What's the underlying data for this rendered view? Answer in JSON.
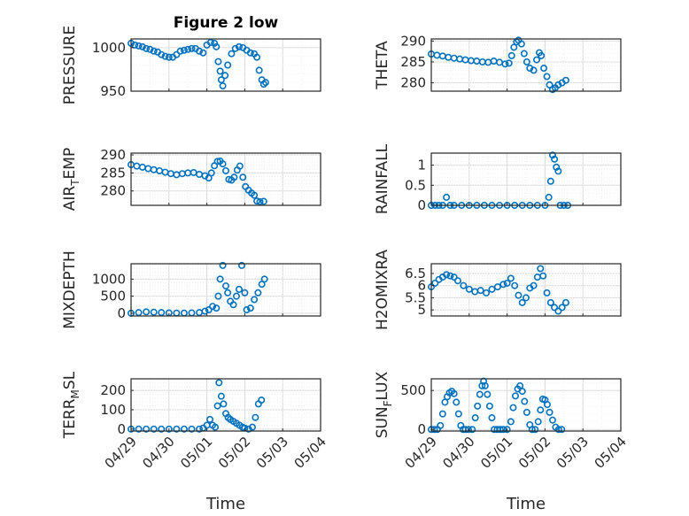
{
  "figure": {
    "title": "Figure 2 low",
    "xlabel": "Time"
  },
  "colors": {
    "marker": "#0072bd",
    "axis": "#262626",
    "grid": "#d9d9d9"
  },
  "chart_data": [
    {
      "type": "scatter",
      "ylabel": "PRESSURE",
      "title": "Figure 2 low",
      "xlim": [
        "04/29",
        "05/04"
      ],
      "ylim": [
        950,
        1010
      ],
      "yticks": [
        950,
        1000
      ],
      "grid": true,
      "x_tick_labels": [
        "04/29",
        "04/30",
        "05/01",
        "05/02",
        "05/03",
        "05/04"
      ],
      "points": [
        [
          0,
          1005
        ],
        [
          0.1,
          1003
        ],
        [
          0.2,
          1002
        ],
        [
          0.3,
          1001
        ],
        [
          0.4,
          999
        ],
        [
          0.5,
          998
        ],
        [
          0.6,
          996
        ],
        [
          0.7,
          995
        ],
        [
          0.8,
          992
        ],
        [
          0.9,
          990
        ],
        [
          1.0,
          989
        ],
        [
          1.1,
          989
        ],
        [
          1.2,
          992
        ],
        [
          1.3,
          996
        ],
        [
          1.4,
          997
        ],
        [
          1.5,
          998
        ],
        [
          1.6,
          999
        ],
        [
          1.7,
          999
        ],
        [
          1.8,
          996
        ],
        [
          1.9,
          994
        ],
        [
          2.0,
          1003
        ],
        [
          2.1,
          1006
        ],
        [
          2.2,
          1005
        ],
        [
          2.25,
          1001
        ],
        [
          2.3,
          984
        ],
        [
          2.35,
          973
        ],
        [
          2.38,
          963
        ],
        [
          2.42,
          956
        ],
        [
          2.48,
          968
        ],
        [
          2.55,
          980
        ],
        [
          2.65,
          993
        ],
        [
          2.75,
          999
        ],
        [
          2.85,
          1001
        ],
        [
          2.95,
          1000
        ],
        [
          3.05,
          997
        ],
        [
          3.15,
          994
        ],
        [
          3.25,
          993
        ],
        [
          3.32,
          989
        ],
        [
          3.38,
          974
        ],
        [
          3.45,
          963
        ],
        [
          3.5,
          958
        ],
        [
          3.55,
          960
        ]
      ]
    },
    {
      "type": "scatter",
      "ylabel": "THETA",
      "xlim": [
        "04/29",
        "05/04"
      ],
      "ylim": [
        278,
        290.5
      ],
      "yticks": [
        280,
        285,
        290
      ],
      "grid": true,
      "x_tick_labels": [
        "04/29",
        "04/30",
        "05/01",
        "05/02",
        "05/03",
        "05/04"
      ],
      "points": [
        [
          0,
          286.9
        ],
        [
          0.15,
          286.6
        ],
        [
          0.3,
          286.4
        ],
        [
          0.45,
          286.1
        ],
        [
          0.6,
          285.9
        ],
        [
          0.75,
          285.7
        ],
        [
          0.9,
          285.5
        ],
        [
          1.05,
          285.3
        ],
        [
          1.2,
          285.2
        ],
        [
          1.35,
          285.0
        ],
        [
          1.5,
          284.9
        ],
        [
          1.65,
          285.2
        ],
        [
          1.8,
          284.9
        ],
        [
          1.95,
          284.5
        ],
        [
          2.05,
          284.7
        ],
        [
          2.12,
          286.5
        ],
        [
          2.18,
          288.5
        ],
        [
          2.25,
          289.8
        ],
        [
          2.3,
          290.2
        ],
        [
          2.38,
          289.3
        ],
        [
          2.45,
          287.0
        ],
        [
          2.52,
          285.0
        ],
        [
          2.6,
          283.5
        ],
        [
          2.7,
          283.0
        ],
        [
          2.78,
          285.5
        ],
        [
          2.85,
          287.2
        ],
        [
          2.9,
          286.5
        ],
        [
          2.97,
          283.5
        ],
        [
          3.05,
          281.5
        ],
        [
          3.12,
          279.5
        ],
        [
          3.2,
          278.4
        ],
        [
          3.27,
          278.8
        ],
        [
          3.35,
          279.5
        ],
        [
          3.45,
          280.0
        ],
        [
          3.55,
          280.6
        ]
      ]
    },
    {
      "type": "scatter",
      "ylabel": "AIR_TEMP",
      "xlim": [
        "04/29",
        "05/04"
      ],
      "ylim": [
        276,
        290.5
      ],
      "yticks": [
        280,
        285,
        290
      ],
      "grid": true,
      "x_tick_labels": [
        "04/29",
        "04/30",
        "05/01",
        "05/02",
        "05/03",
        "05/04"
      ],
      "points": [
        [
          0,
          287.3
        ],
        [
          0.15,
          286.9
        ],
        [
          0.3,
          286.6
        ],
        [
          0.45,
          286.2
        ],
        [
          0.6,
          285.9
        ],
        [
          0.75,
          285.6
        ],
        [
          0.9,
          285.2
        ],
        [
          1.05,
          284.8
        ],
        [
          1.2,
          284.5
        ],
        [
          1.35,
          284.8
        ],
        [
          1.5,
          285.0
        ],
        [
          1.65,
          285.1
        ],
        [
          1.8,
          284.6
        ],
        [
          1.95,
          284.2
        ],
        [
          2.05,
          283.6
        ],
        [
          2.12,
          285.0
        ],
        [
          2.2,
          287.0
        ],
        [
          2.28,
          288.2
        ],
        [
          2.35,
          288.3
        ],
        [
          2.42,
          287.5
        ],
        [
          2.5,
          285.6
        ],
        [
          2.58,
          283.2
        ],
        [
          2.65,
          283.0
        ],
        [
          2.72,
          283.8
        ],
        [
          2.8,
          285.8
        ],
        [
          2.87,
          286.9
        ],
        [
          2.95,
          283.8
        ],
        [
          3.02,
          281.2
        ],
        [
          3.1,
          280.2
        ],
        [
          3.18,
          279.4
        ],
        [
          3.25,
          278.8
        ],
        [
          3.32,
          277.2
        ],
        [
          3.4,
          277.0
        ],
        [
          3.5,
          277.1
        ]
      ]
    },
    {
      "type": "scatter",
      "ylabel": "RAINFALL",
      "xlim": [
        "04/29",
        "05/04"
      ],
      "ylim": [
        0,
        1.3
      ],
      "yticks": [
        0,
        0.5,
        1
      ],
      "grid": true,
      "x_tick_labels": [
        "04/29",
        "04/30",
        "05/01",
        "05/02",
        "05/03",
        "05/04"
      ],
      "points": [
        [
          0,
          0
        ],
        [
          0.1,
          0
        ],
        [
          0.2,
          0
        ],
        [
          0.3,
          0
        ],
        [
          0.4,
          0.2
        ],
        [
          0.5,
          0
        ],
        [
          0.6,
          0
        ],
        [
          0.8,
          0
        ],
        [
          1.0,
          0
        ],
        [
          1.2,
          0
        ],
        [
          1.4,
          0
        ],
        [
          1.6,
          0
        ],
        [
          1.8,
          0
        ],
        [
          2.0,
          0
        ],
        [
          2.2,
          0
        ],
        [
          2.4,
          0
        ],
        [
          2.6,
          0
        ],
        [
          2.8,
          0
        ],
        [
          3.0,
          0
        ],
        [
          3.1,
          0.2
        ],
        [
          3.15,
          0.6
        ],
        [
          3.2,
          1.25
        ],
        [
          3.25,
          1.15
        ],
        [
          3.3,
          0.95
        ],
        [
          3.35,
          0.85
        ],
        [
          3.4,
          0
        ],
        [
          3.5,
          0
        ],
        [
          3.6,
          0
        ]
      ]
    },
    {
      "type": "scatter",
      "ylabel": "MIXDEPTH",
      "xlim": [
        "04/29",
        "05/04"
      ],
      "ylim": [
        -80,
        1450
      ],
      "yticks": [
        0,
        500,
        1000
      ],
      "grid": true,
      "x_tick_labels": [
        "04/29",
        "04/30",
        "05/01",
        "05/02",
        "05/03",
        "05/04"
      ],
      "points": [
        [
          0,
          0
        ],
        [
          0.2,
          20
        ],
        [
          0.4,
          40
        ],
        [
          0.6,
          30
        ],
        [
          0.8,
          20
        ],
        [
          1.0,
          10
        ],
        [
          1.2,
          5
        ],
        [
          1.4,
          5
        ],
        [
          1.6,
          10
        ],
        [
          1.8,
          20
        ],
        [
          1.95,
          60
        ],
        [
          2.05,
          100
        ],
        [
          2.15,
          200
        ],
        [
          2.25,
          150
        ],
        [
          2.3,
          500
        ],
        [
          2.35,
          1000
        ],
        [
          2.42,
          1400
        ],
        [
          2.5,
          800
        ],
        [
          2.55,
          600
        ],
        [
          2.62,
          350
        ],
        [
          2.7,
          250
        ],
        [
          2.78,
          500
        ],
        [
          2.85,
          700
        ],
        [
          2.92,
          1400
        ],
        [
          3.0,
          600
        ],
        [
          3.05,
          100
        ],
        [
          3.15,
          150
        ],
        [
          3.25,
          400
        ],
        [
          3.35,
          600
        ],
        [
          3.45,
          850
        ],
        [
          3.52,
          1000
        ]
      ]
    },
    {
      "type": "scatter",
      "ylabel": "H2OMIXRA",
      "xlim": [
        "04/29",
        "05/04"
      ],
      "ylim": [
        4.75,
        6.9
      ],
      "yticks": [
        5,
        5.5,
        6,
        6.5
      ],
      "grid": true,
      "x_tick_labels": [
        "04/29",
        "04/30",
        "05/01",
        "05/02",
        "05/03",
        "05/04"
      ],
      "points": [
        [
          0,
          5.95
        ],
        [
          0.1,
          6.1
        ],
        [
          0.2,
          6.25
        ],
        [
          0.3,
          6.35
        ],
        [
          0.4,
          6.45
        ],
        [
          0.5,
          6.4
        ],
        [
          0.6,
          6.35
        ],
        [
          0.7,
          6.2
        ],
        [
          0.85,
          6.0
        ],
        [
          1.0,
          5.85
        ],
        [
          1.15,
          5.75
        ],
        [
          1.3,
          5.8
        ],
        [
          1.45,
          5.7
        ],
        [
          1.6,
          5.85
        ],
        [
          1.75,
          5.95
        ],
        [
          1.9,
          6.05
        ],
        [
          2.0,
          6.1
        ],
        [
          2.1,
          6.3
        ],
        [
          2.2,
          6.0
        ],
        [
          2.3,
          5.6
        ],
        [
          2.4,
          5.3
        ],
        [
          2.5,
          5.5
        ],
        [
          2.6,
          5.9
        ],
        [
          2.7,
          6.0
        ],
        [
          2.8,
          6.35
        ],
        [
          2.88,
          6.7
        ],
        [
          2.95,
          6.4
        ],
        [
          3.05,
          5.7
        ],
        [
          3.15,
          5.3
        ],
        [
          3.25,
          5.1
        ],
        [
          3.35,
          4.95
        ],
        [
          3.45,
          5.1
        ],
        [
          3.55,
          5.3
        ]
      ]
    },
    {
      "type": "scatter",
      "ylabel": "TERR_MSL",
      "xlim": [
        "04/29",
        "05/04"
      ],
      "ylim": [
        -10,
        260
      ],
      "yticks": [
        0,
        100,
        200
      ],
      "grid": true,
      "x_tick_labels": [
        "04/29",
        "04/30",
        "05/01",
        "05/02",
        "05/03",
        "05/04"
      ],
      "points": [
        [
          0,
          0
        ],
        [
          0.2,
          0
        ],
        [
          0.4,
          0
        ],
        [
          0.6,
          0
        ],
        [
          0.8,
          0
        ],
        [
          1.0,
          0
        ],
        [
          1.2,
          0
        ],
        [
          1.4,
          0
        ],
        [
          1.6,
          0
        ],
        [
          1.8,
          0
        ],
        [
          1.9,
          5
        ],
        [
          2.0,
          20
        ],
        [
          2.08,
          50
        ],
        [
          2.15,
          20
        ],
        [
          2.22,
          10
        ],
        [
          2.28,
          120
        ],
        [
          2.32,
          240
        ],
        [
          2.38,
          170
        ],
        [
          2.44,
          130
        ],
        [
          2.5,
          80
        ],
        [
          2.56,
          60
        ],
        [
          2.62,
          50
        ],
        [
          2.7,
          40
        ],
        [
          2.78,
          30
        ],
        [
          2.86,
          20
        ],
        [
          2.94,
          10
        ],
        [
          3.0,
          5
        ],
        [
          3.1,
          0
        ],
        [
          3.2,
          10
        ],
        [
          3.28,
          60
        ],
        [
          3.36,
          130
        ],
        [
          3.44,
          150
        ]
      ]
    },
    {
      "type": "scatter",
      "ylabel": "SUN_FLUX",
      "xlim": [
        "04/29",
        "05/04"
      ],
      "ylim": [
        -20,
        650
      ],
      "yticks": [
        0,
        500
      ],
      "grid": true,
      "x_tick_labels": [
        "04/29",
        "04/30",
        "05/01",
        "05/02",
        "05/03",
        "05/04"
      ],
      "points": [
        [
          0,
          0
        ],
        [
          0.08,
          0
        ],
        [
          0.16,
          0
        ],
        [
          0.24,
          50
        ],
        [
          0.3,
          200
        ],
        [
          0.36,
          350
        ],
        [
          0.42,
          420
        ],
        [
          0.48,
          470
        ],
        [
          0.54,
          490
        ],
        [
          0.6,
          460
        ],
        [
          0.66,
          350
        ],
        [
          0.72,
          200
        ],
        [
          0.78,
          50
        ],
        [
          0.84,
          0
        ],
        [
          0.9,
          0
        ],
        [
          0.98,
          0
        ],
        [
          1.08,
          0
        ],
        [
          1.16,
          150
        ],
        [
          1.22,
          300
        ],
        [
          1.28,
          450
        ],
        [
          1.34,
          560
        ],
        [
          1.38,
          620
        ],
        [
          1.42,
          560
        ],
        [
          1.48,
          450
        ],
        [
          1.54,
          300
        ],
        [
          1.6,
          150
        ],
        [
          1.66,
          0
        ],
        [
          1.74,
          0
        ],
        [
          1.82,
          0
        ],
        [
          1.9,
          0
        ],
        [
          2.0,
          0
        ],
        [
          2.1,
          100
        ],
        [
          2.16,
          280
        ],
        [
          2.22,
          430
        ],
        [
          2.28,
          520
        ],
        [
          2.34,
          560
        ],
        [
          2.4,
          490
        ],
        [
          2.46,
          360
        ],
        [
          2.52,
          220
        ],
        [
          2.6,
          60
        ],
        [
          2.66,
          0
        ],
        [
          2.74,
          0
        ],
        [
          2.82,
          100
        ],
        [
          2.88,
          250
        ],
        [
          2.94,
          390
        ],
        [
          3.0,
          380
        ],
        [
          3.06,
          320
        ],
        [
          3.12,
          220
        ],
        [
          3.2,
          120
        ],
        [
          3.28,
          30
        ],
        [
          3.36,
          0
        ],
        [
          3.44,
          0
        ]
      ]
    }
  ]
}
